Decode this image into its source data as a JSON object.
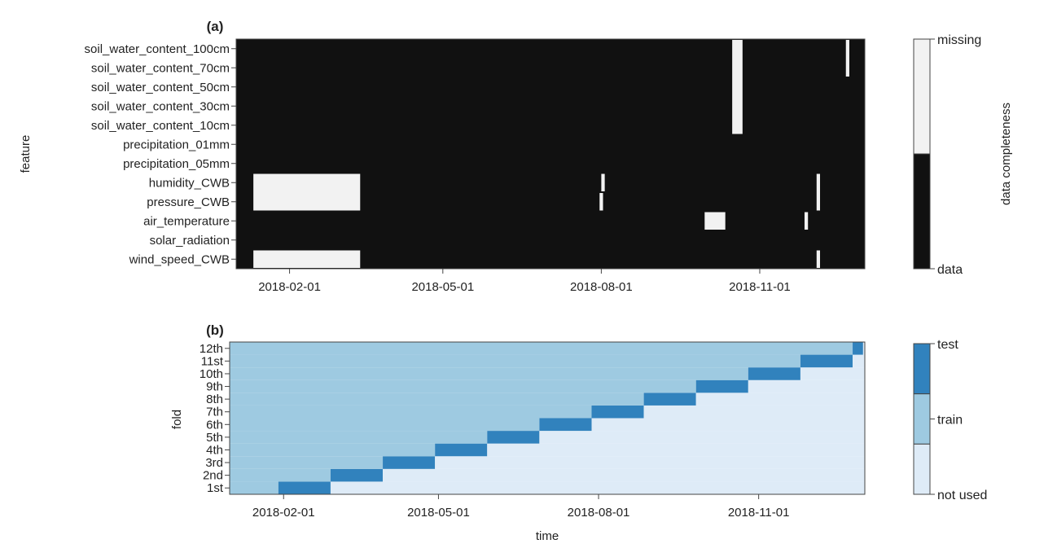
{
  "chart_data": [
    {
      "panel_label": "(a)",
      "type": "heatmap",
      "ylabel": "feature",
      "xlabel": "",
      "x_range": [
        "2018-01-01",
        "2018-12-31"
      ],
      "x_ticks": [
        "2018-02-01",
        "2018-05-01",
        "2018-08-01",
        "2018-11-01"
      ],
      "features": [
        "soil_water_content_100cm",
        "soil_water_content_70cm",
        "soil_water_content_50cm",
        "soil_water_content_30cm",
        "soil_water_content_10cm",
        "precipitation_01mm",
        "precipitation_05mm",
        "humidity_CWB",
        "pressure_CWB",
        "air_temperature",
        "solar_radiation",
        "wind_speed_CWB"
      ],
      "default_value": "data",
      "missing_blocks": [
        {
          "features": [
            "humidity_CWB",
            "pressure_CWB"
          ],
          "start": "2018-01-11",
          "end": "2018-03-13"
        },
        {
          "features": [
            "wind_speed_CWB"
          ],
          "start": "2018-01-11",
          "end": "2018-03-13"
        },
        {
          "features": [
            "soil_water_content_100cm",
            "soil_water_content_70cm",
            "soil_water_content_50cm",
            "soil_water_content_30cm",
            "soil_water_content_10cm"
          ],
          "start": "2018-10-16",
          "end": "2018-10-21"
        },
        {
          "features": [
            "air_temperature"
          ],
          "start": "2018-09-30",
          "end": "2018-10-11"
        },
        {
          "features": [
            "humidity_CWB",
            "pressure_CWB"
          ],
          "start": "2018-12-04",
          "end": "2018-12-05"
        },
        {
          "features": [
            "wind_speed_CWB"
          ],
          "start": "2018-12-04",
          "end": "2018-12-05"
        },
        {
          "features": [
            "humidity_CWB"
          ],
          "start": "2018-08-01",
          "end": "2018-08-02"
        },
        {
          "features": [
            "pressure_CWB"
          ],
          "start": "2018-07-31",
          "end": "2018-08-01"
        },
        {
          "features": [
            "air_temperature"
          ],
          "start": "2018-11-27",
          "end": "2018-11-28"
        },
        {
          "features": [
            "soil_water_content_100cm",
            "soil_water_content_70cm"
          ],
          "start": "2018-12-21",
          "end": "2018-12-22"
        }
      ],
      "colorbar": {
        "title": "data completeness",
        "levels": [
          "data",
          "missing"
        ],
        "colors": [
          "#111111",
          "#f2f2f2"
        ]
      }
    },
    {
      "panel_label": "(b)",
      "type": "heatmap",
      "ylabel": "fold",
      "xlabel": "time",
      "x_range": [
        "2018-01-01",
        "2018-12-31"
      ],
      "x_ticks": [
        "2018-02-01",
        "2018-05-01",
        "2018-08-01",
        "2018-11-01"
      ],
      "folds": [
        "1st",
        "2nd",
        "3rd",
        "4th",
        "5th",
        "6th",
        "7th",
        "8th",
        "9th",
        "10th",
        "11st",
        "12th"
      ],
      "test_periods": [
        {
          "fold": "1st",
          "start": "2018-01-29",
          "end": "2018-02-28"
        },
        {
          "fold": "2nd",
          "start": "2018-02-28",
          "end": "2018-03-30"
        },
        {
          "fold": "3rd",
          "start": "2018-03-30",
          "end": "2018-04-29"
        },
        {
          "fold": "4th",
          "start": "2018-04-29",
          "end": "2018-05-29"
        },
        {
          "fold": "5th",
          "start": "2018-05-29",
          "end": "2018-06-28"
        },
        {
          "fold": "6th",
          "start": "2018-06-28",
          "end": "2018-07-28"
        },
        {
          "fold": "7th",
          "start": "2018-07-28",
          "end": "2018-08-27"
        },
        {
          "fold": "8th",
          "start": "2018-08-27",
          "end": "2018-09-26"
        },
        {
          "fold": "9th",
          "start": "2018-09-26",
          "end": "2018-10-26"
        },
        {
          "fold": "10th",
          "start": "2018-10-26",
          "end": "2018-11-25"
        },
        {
          "fold": "11st",
          "start": "2018-11-25",
          "end": "2018-12-25"
        },
        {
          "fold": "12th",
          "start": "2018-12-25",
          "end": "2018-12-31"
        }
      ],
      "rule": "train before test period, not used after",
      "colorbar": {
        "levels": [
          "not used",
          "train",
          "test"
        ],
        "colors": [
          "#deebf7",
          "#9ecae1",
          "#3182bd"
        ]
      }
    }
  ]
}
